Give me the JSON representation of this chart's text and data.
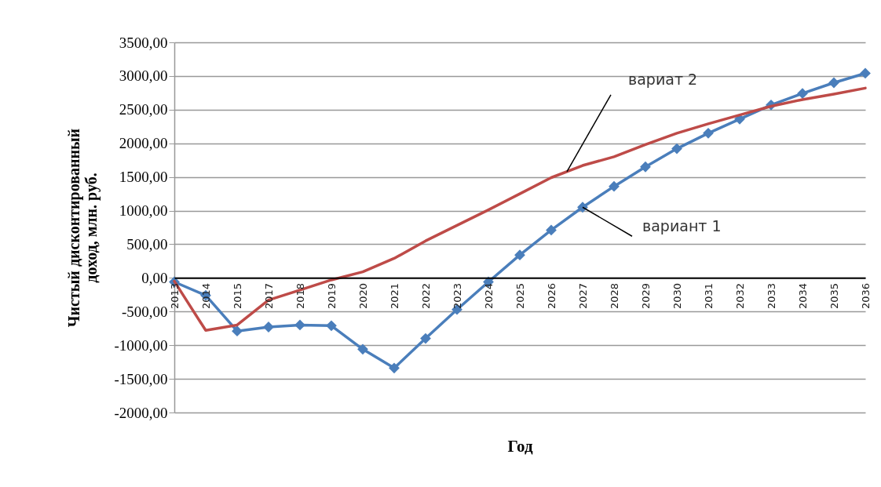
{
  "chart_data": {
    "type": "line",
    "xlabel": "Год",
    "ylabel": "Чистый дисконтированный доход, млн. руб.",
    "categories": [
      "2013",
      "2014",
      "2015",
      "2017",
      "2018",
      "2019",
      "2020",
      "2021",
      "2022",
      "2023",
      "2024",
      "2025",
      "2026",
      "2027",
      "2028",
      "2029",
      "2030",
      "2031",
      "2032",
      "2033",
      "2034",
      "2035",
      "2036"
    ],
    "series": [
      {
        "name": "вариант 1",
        "color": "#4a7ebb",
        "marker": "diamond",
        "values": [
          -60,
          -260,
          -790,
          -730,
          -700,
          -710,
          -1060,
          -1340,
          -900,
          -470,
          -60,
          340,
          710,
          1050,
          1360,
          1650,
          1920,
          2150,
          2360,
          2570,
          2740,
          2900,
          3040
        ]
      },
      {
        "name": "вариат 2",
        "color": "#be4b48",
        "marker": "none",
        "values": [
          -50,
          -780,
          -700,
          -330,
          -180,
          -30,
          90,
          290,
          550,
          780,
          1010,
          1250,
          1490,
          1670,
          1800,
          1980,
          2150,
          2290,
          2420,
          2550,
          2650,
          2730,
          2820
        ]
      }
    ],
    "ylim": [
      -2000,
      3500
    ],
    "yticks": [
      {
        "value": -2000,
        "label": "-2000,00"
      },
      {
        "value": -1500,
        "label": "-1500,00"
      },
      {
        "value": -1000,
        "label": "-1000,00"
      },
      {
        "value": -500,
        "label": "-500,00"
      },
      {
        "value": 0,
        "label": "0,00"
      },
      {
        "value": 500,
        "label": "500,00"
      },
      {
        "value": 1000,
        "label": "1000,00"
      },
      {
        "value": 1500,
        "label": "1500,00"
      },
      {
        "value": 2000,
        "label": "2000,00"
      },
      {
        "value": 2500,
        "label": "2500,00"
      },
      {
        "value": 3000,
        "label": "3000,00"
      },
      {
        "value": 3500,
        "label": "3500,00"
      }
    ],
    "grid": "y",
    "legend": false,
    "line_style": "solid"
  }
}
